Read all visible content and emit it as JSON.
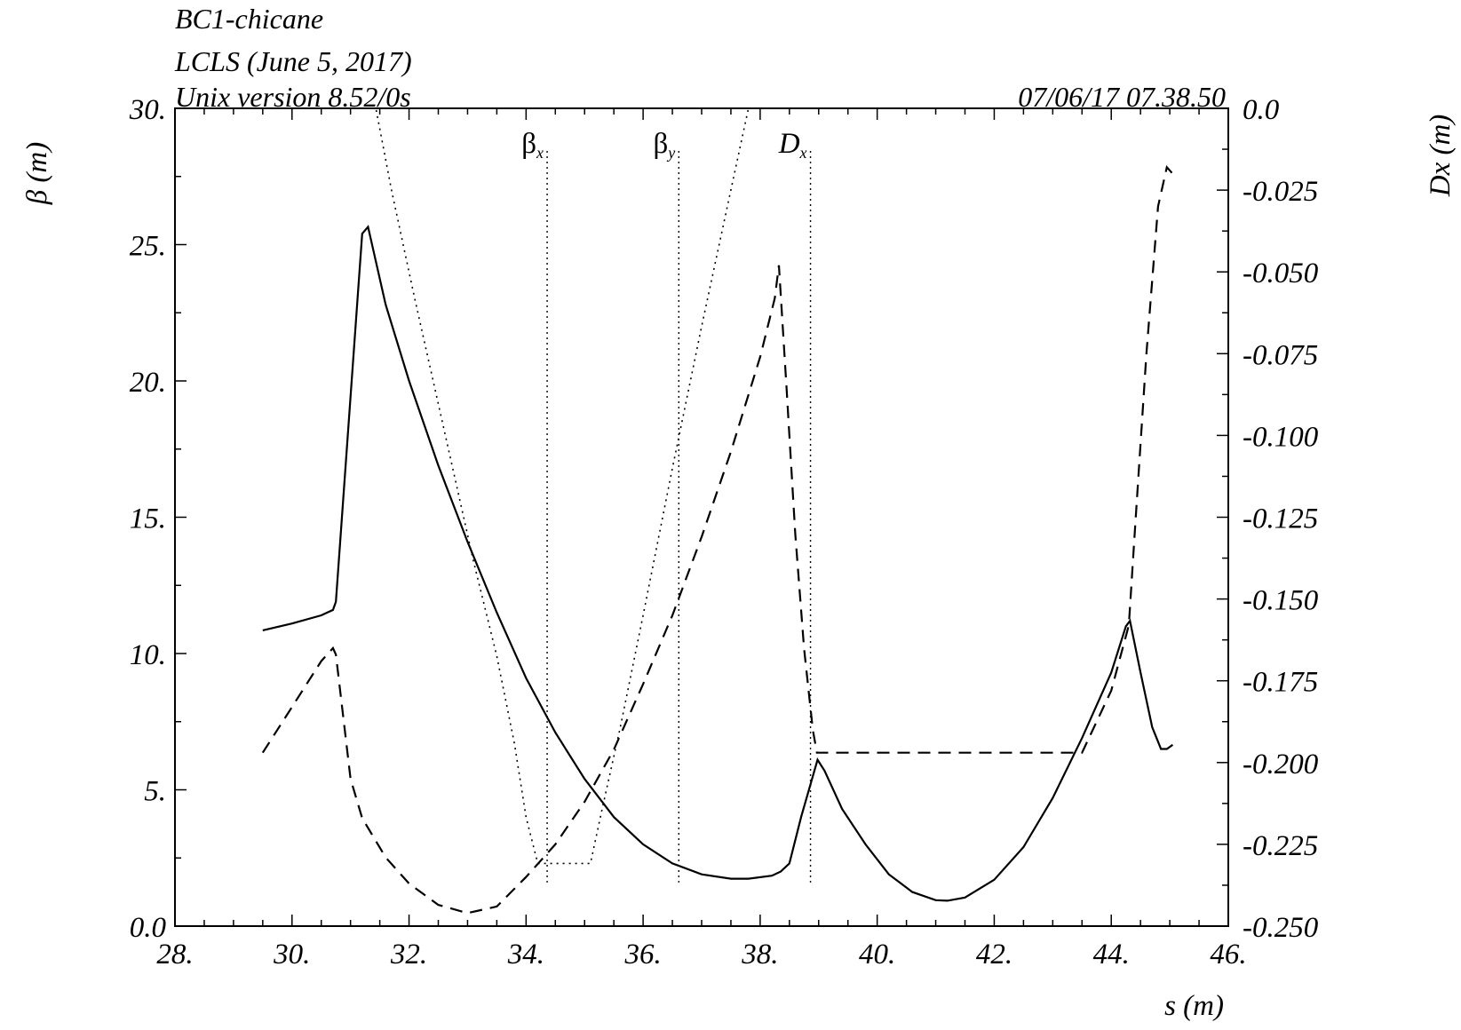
{
  "header": {
    "line1": "BC1-chicane",
    "line2": "LCLS (June 5, 2017)",
    "line3": "Unix version 8.52/0s",
    "timestamp": "07/06/17  07.38.50"
  },
  "chart_data": {
    "type": "line",
    "xlabel": "s (m)",
    "ylabel_left": "β  (m)",
    "ylabel_right": "Dx  (m)",
    "xlim": [
      28,
      46
    ],
    "ylim_left": [
      0,
      30
    ],
    "ylim_right": [
      -0.25,
      0
    ],
    "x_ticks": [
      "28.",
      "30.",
      "32.",
      "34.",
      "36.",
      "38.",
      "40.",
      "42.",
      "44.",
      "46."
    ],
    "y_ticks_left": [
      "0.0",
      "5.",
      "10.",
      "15.",
      "20.",
      "25.",
      "30."
    ],
    "y_ticks_right": [
      "-0.250",
      "-0.225",
      "-0.200",
      "-0.175",
      "-0.150",
      "-0.125",
      "-0.100",
      "-0.075",
      "-0.050",
      "-0.025",
      "0.0"
    ],
    "grid": false,
    "legend": {
      "placement": "top",
      "entries": [
        {
          "label": "β",
          "sub": "x",
          "series": "beta_x",
          "s": 34.36
        },
        {
          "label": "β",
          "sub": "y",
          "series": "beta_y",
          "s": 36.61
        },
        {
          "label": "D",
          "sub": "x",
          "series": "D_x",
          "s": 38.86
        }
      ]
    },
    "series": [
      {
        "name": "βx",
        "axis": "left",
        "style": "solid",
        "color": "#000000",
        "x": [
          29.5,
          30.0,
          30.5,
          30.7,
          30.75,
          31.2,
          31.3,
          31.6,
          32.0,
          32.5,
          33.0,
          33.5,
          34.0,
          34.5,
          35.0,
          35.5,
          36.0,
          36.5,
          37.0,
          37.5,
          37.8,
          38.2,
          38.35,
          38.5,
          38.7,
          38.98,
          39.1,
          39.4,
          39.8,
          40.2,
          40.6,
          41.0,
          41.2,
          41.5,
          42.0,
          42.5,
          43.0,
          43.5,
          44.0,
          44.25,
          44.32,
          44.5,
          44.7,
          44.85,
          44.95,
          45.05
        ],
        "y": [
          10.85,
          11.1,
          11.4,
          11.6,
          11.9,
          25.4,
          25.65,
          22.8,
          20.0,
          16.9,
          14.1,
          11.5,
          9.1,
          7.1,
          5.4,
          4.0,
          3.0,
          2.3,
          1.9,
          1.74,
          1.74,
          1.85,
          2.0,
          2.3,
          4.0,
          6.1,
          5.7,
          4.3,
          3.0,
          1.9,
          1.25,
          0.95,
          0.93,
          1.05,
          1.7,
          2.9,
          4.7,
          6.9,
          9.3,
          11.0,
          11.2,
          9.3,
          7.3,
          6.5,
          6.5,
          6.65
        ]
      },
      {
        "name": "βy",
        "axis": "left",
        "style": "dotted",
        "color": "#000000",
        "x": [
          31.3,
          31.7,
          32.1,
          32.6,
          33.1,
          33.5,
          33.8,
          34.0,
          34.2,
          34.5,
          34.9,
          35.1,
          35.3,
          35.6,
          36.0,
          36.5,
          37.0,
          37.5,
          37.9
        ],
        "y": [
          31.5,
          27.0,
          23.0,
          18.2,
          13.4,
          9.9,
          6.7,
          4.0,
          2.3,
          2.3,
          2.3,
          2.3,
          4.3,
          7.2,
          11.4,
          16.8,
          22.0,
          27.0,
          31.0
        ]
      },
      {
        "name": "Dx",
        "axis": "right",
        "style": "dashed",
        "color": "#000000",
        "x": [
          29.5,
          30.0,
          30.5,
          30.7,
          30.75,
          31.0,
          31.2,
          31.6,
          32.0,
          32.5,
          33.0,
          33.5,
          34.0,
          34.5,
          35.0,
          35.5,
          36.0,
          36.5,
          37.0,
          37.5,
          38.0,
          38.25,
          38.32,
          38.45,
          38.6,
          38.75,
          38.9,
          38.97,
          43.5,
          44.0,
          44.3,
          44.4,
          44.6,
          44.8,
          44.95,
          45.05
        ],
        "y": [
          -0.197,
          -0.183,
          -0.169,
          -0.165,
          -0.167,
          -0.205,
          -0.217,
          -0.229,
          -0.237,
          -0.2435,
          -0.246,
          -0.244,
          -0.235,
          -0.225,
          -0.212,
          -0.196,
          -0.176,
          -0.155,
          -0.131,
          -0.105,
          -0.076,
          -0.058,
          -0.048,
          -0.085,
          -0.13,
          -0.165,
          -0.19,
          -0.197,
          -0.197,
          -0.178,
          -0.158,
          -0.13,
          -0.075,
          -0.03,
          -0.018,
          -0.02
        ]
      }
    ]
  }
}
